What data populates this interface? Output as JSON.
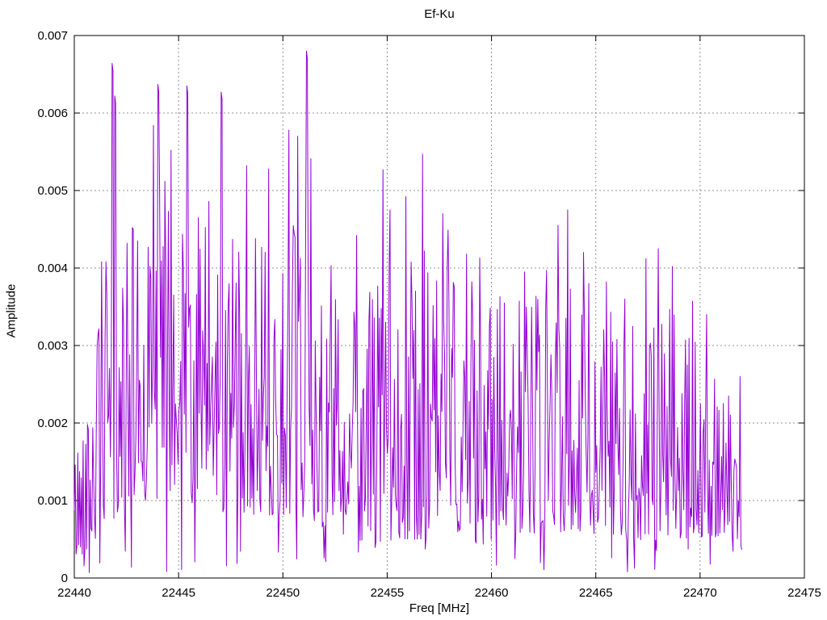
{
  "title": "Ef-Ku",
  "axes": {
    "xlabel": "Freq [MHz]",
    "ylabel": "Amplitude",
    "x_tick_labels": [
      "22440",
      "22445",
      "22450",
      "22455",
      "22460",
      "22465",
      "22470",
      "22475"
    ],
    "y_tick_labels": [
      "0",
      "0.001",
      "0.002",
      "0.003",
      "0.004",
      "0.005",
      "0.006",
      "0.007"
    ]
  },
  "plot_style": {
    "background": "#ffffff",
    "frame_color": "#000000",
    "grid_color": "#909090",
    "line_color": "#9400d3"
  },
  "chart_data": {
    "type": "line",
    "title": "Ef-Ku",
    "xlabel": "Freq [MHz]",
    "ylabel": "Amplitude",
    "xlim": [
      22440,
      22475
    ],
    "ylim": [
      0,
      0.007
    ],
    "x_tick_values": [
      22440,
      22445,
      22450,
      22455,
      22460,
      22465,
      22470,
      22475
    ],
    "y_tick_values": [
      0,
      0.001,
      0.002,
      0.003,
      0.004,
      0.005,
      0.006,
      0.007
    ],
    "grid": true,
    "legend": false,
    "line_color": "#9400d3",
    "x_start": 22440,
    "x_end": 22472,
    "n_points": 760,
    "seed": 42,
    "noise_shape_exponent": 1.7,
    "dip_probability": 0.045,
    "dip_max": 0.0004,
    "envelope": [
      {
        "x": 22440.0,
        "lo": 0.0002,
        "hi": 0.0018
      },
      {
        "x": 22440.7,
        "lo": 0.0004,
        "hi": 0.0026
      },
      {
        "x": 22441.5,
        "lo": 0.0006,
        "hi": 0.0041
      },
      {
        "x": 22442.3,
        "lo": 0.0008,
        "hi": 0.0044
      },
      {
        "x": 22443.5,
        "lo": 0.001,
        "hi": 0.0048
      },
      {
        "x": 22444.3,
        "lo": 0.001,
        "hi": 0.0051
      },
      {
        "x": 22445.5,
        "lo": 0.0009,
        "hi": 0.0047
      },
      {
        "x": 22446.5,
        "lo": 0.0009,
        "hi": 0.0046
      },
      {
        "x": 22447.5,
        "lo": 0.0008,
        "hi": 0.0043
      },
      {
        "x": 22448.5,
        "lo": 0.0008,
        "hi": 0.0042
      },
      {
        "x": 22449.5,
        "lo": 0.0008,
        "hi": 0.0044
      },
      {
        "x": 22450.7,
        "lo": 0.0008,
        "hi": 0.0047
      },
      {
        "x": 22451.5,
        "lo": 0.0007,
        "hi": 0.0042
      },
      {
        "x": 22452.5,
        "lo": 0.0006,
        "hi": 0.0039
      },
      {
        "x": 22453.5,
        "lo": 0.0005,
        "hi": 0.0041
      },
      {
        "x": 22454.5,
        "lo": 0.0004,
        "hi": 0.0039
      },
      {
        "x": 22455.5,
        "lo": 0.0005,
        "hi": 0.0041
      },
      {
        "x": 22456.5,
        "lo": 0.0005,
        "hi": 0.0043
      },
      {
        "x": 22457.5,
        "lo": 0.0005,
        "hi": 0.0042
      },
      {
        "x": 22458.5,
        "lo": 0.0006,
        "hi": 0.004
      },
      {
        "x": 22459.5,
        "lo": 0.0004,
        "hi": 0.0038
      },
      {
        "x": 22460.5,
        "lo": 0.0005,
        "hi": 0.0036
      },
      {
        "x": 22461.5,
        "lo": 0.0006,
        "hi": 0.0037
      },
      {
        "x": 22462.5,
        "lo": 0.0005,
        "hi": 0.0036
      },
      {
        "x": 22463.5,
        "lo": 0.0006,
        "hi": 0.0039
      },
      {
        "x": 22464.5,
        "lo": 0.0006,
        "hi": 0.0038
      },
      {
        "x": 22465.5,
        "lo": 0.0005,
        "hi": 0.0035
      },
      {
        "x": 22466.5,
        "lo": 0.0005,
        "hi": 0.0033
      },
      {
        "x": 22467.5,
        "lo": 0.0004,
        "hi": 0.0033
      },
      {
        "x": 22468.5,
        "lo": 0.0005,
        "hi": 0.0035
      },
      {
        "x": 22469.5,
        "lo": 0.0005,
        "hi": 0.0033
      },
      {
        "x": 22470.5,
        "lo": 0.0005,
        "hi": 0.0029
      },
      {
        "x": 22471.3,
        "lo": 0.0006,
        "hi": 0.0024
      },
      {
        "x": 22472.0,
        "lo": 0.0004,
        "hi": 0.0026
      }
    ],
    "peaks": [
      {
        "x": 22441.3,
        "y": 0.00408
      },
      {
        "x": 22441.8,
        "y": 0.00664
      },
      {
        "x": 22441.95,
        "y": 0.00622
      },
      {
        "x": 22442.55,
        "y": 0.00432
      },
      {
        "x": 22443.05,
        "y": 0.00435
      },
      {
        "x": 22443.8,
        "y": 0.00584
      },
      {
        "x": 22444.0,
        "y": 0.00637
      },
      {
        "x": 22444.35,
        "y": 0.00512
      },
      {
        "x": 22444.65,
        "y": 0.00552
      },
      {
        "x": 22445.4,
        "y": 0.00635
      },
      {
        "x": 22445.95,
        "y": 0.00465
      },
      {
        "x": 22446.45,
        "y": 0.00486
      },
      {
        "x": 22447.05,
        "y": 0.00627
      },
      {
        "x": 22447.6,
        "y": 0.00437
      },
      {
        "x": 22448.25,
        "y": 0.00532
      },
      {
        "x": 22448.7,
        "y": 0.00438
      },
      {
        "x": 22449.3,
        "y": 0.00528
      },
      {
        "x": 22450.3,
        "y": 0.00578
      },
      {
        "x": 22450.7,
        "y": 0.0057
      },
      {
        "x": 22451.15,
        "y": 0.0068
      },
      {
        "x": 22451.35,
        "y": 0.00541
      },
      {
        "x": 22452.3,
        "y": 0.00403
      },
      {
        "x": 22453.55,
        "y": 0.00442
      },
      {
        "x": 22454.8,
        "y": 0.00527
      },
      {
        "x": 22455.15,
        "y": 0.00475
      },
      {
        "x": 22455.9,
        "y": 0.00492
      },
      {
        "x": 22456.7,
        "y": 0.00547
      },
      {
        "x": 22457.65,
        "y": 0.0047
      },
      {
        "x": 22457.9,
        "y": 0.00449
      },
      {
        "x": 22458.8,
        "y": 0.00418
      },
      {
        "x": 22459.45,
        "y": 0.00413
      },
      {
        "x": 22460.4,
        "y": 0.00363
      },
      {
        "x": 22461.6,
        "y": 0.00395
      },
      {
        "x": 22462.65,
        "y": 0.00397
      },
      {
        "x": 22463.2,
        "y": 0.00455
      },
      {
        "x": 22463.65,
        "y": 0.00475
      },
      {
        "x": 22464.4,
        "y": 0.0042
      },
      {
        "x": 22464.66,
        "y": 0.0038
      },
      {
        "x": 22465.5,
        "y": 0.00382
      },
      {
        "x": 22466.4,
        "y": 0.0036
      },
      {
        "x": 22467.4,
        "y": 0.00412
      },
      {
        "x": 22468.0,
        "y": 0.00425
      },
      {
        "x": 22468.65,
        "y": 0.00402
      },
      {
        "x": 22469.65,
        "y": 0.00357
      },
      {
        "x": 22470.3,
        "y": 0.0034
      },
      {
        "x": 22471.9,
        "y": 0.0026
      }
    ]
  }
}
